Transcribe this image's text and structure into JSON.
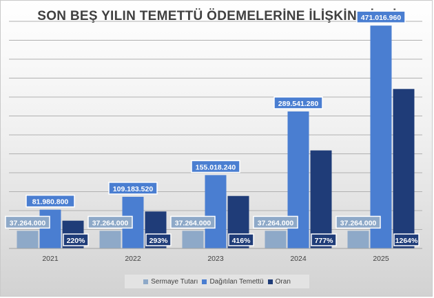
{
  "chart_data": {
    "type": "bar",
    "title": "SON BEŞ YILIN TEMETTÜ ÖDEMELERİNE İLİŞKİN BİLGİ",
    "categories": [
      "2021",
      "2022",
      "2023",
      "2024",
      "2025"
    ],
    "ylim": [
      0,
      480000000
    ],
    "grid": true,
    "legend_position": "bottom",
    "series": [
      {
        "name": "Sermaye Tutarı",
        "color": "#8ea9c8",
        "values": [
          37264000,
          37264000,
          37264000,
          37264000,
          37264000
        ],
        "labels": [
          "37.264.000",
          "37.264.000",
          "37.264.000",
          "37.264.000",
          "37.264.000"
        ]
      },
      {
        "name": "Dağıtılan Temettü",
        "color": "#4a7ed1",
        "values": [
          81980800,
          109183520,
          155018240,
          289541280,
          471016960
        ],
        "labels": [
          "81.980.800",
          "109.183.520",
          "155.018.240",
          "289.541.280",
          "471.016.960"
        ]
      },
      {
        "name": "Oran",
        "color": "#1f3c78",
        "values": [
          2.2,
          2.93,
          4.16,
          7.77,
          12.64
        ],
        "labels": [
          "220%",
          "293%",
          "416%",
          "777%",
          "1264%"
        ]
      }
    ]
  }
}
